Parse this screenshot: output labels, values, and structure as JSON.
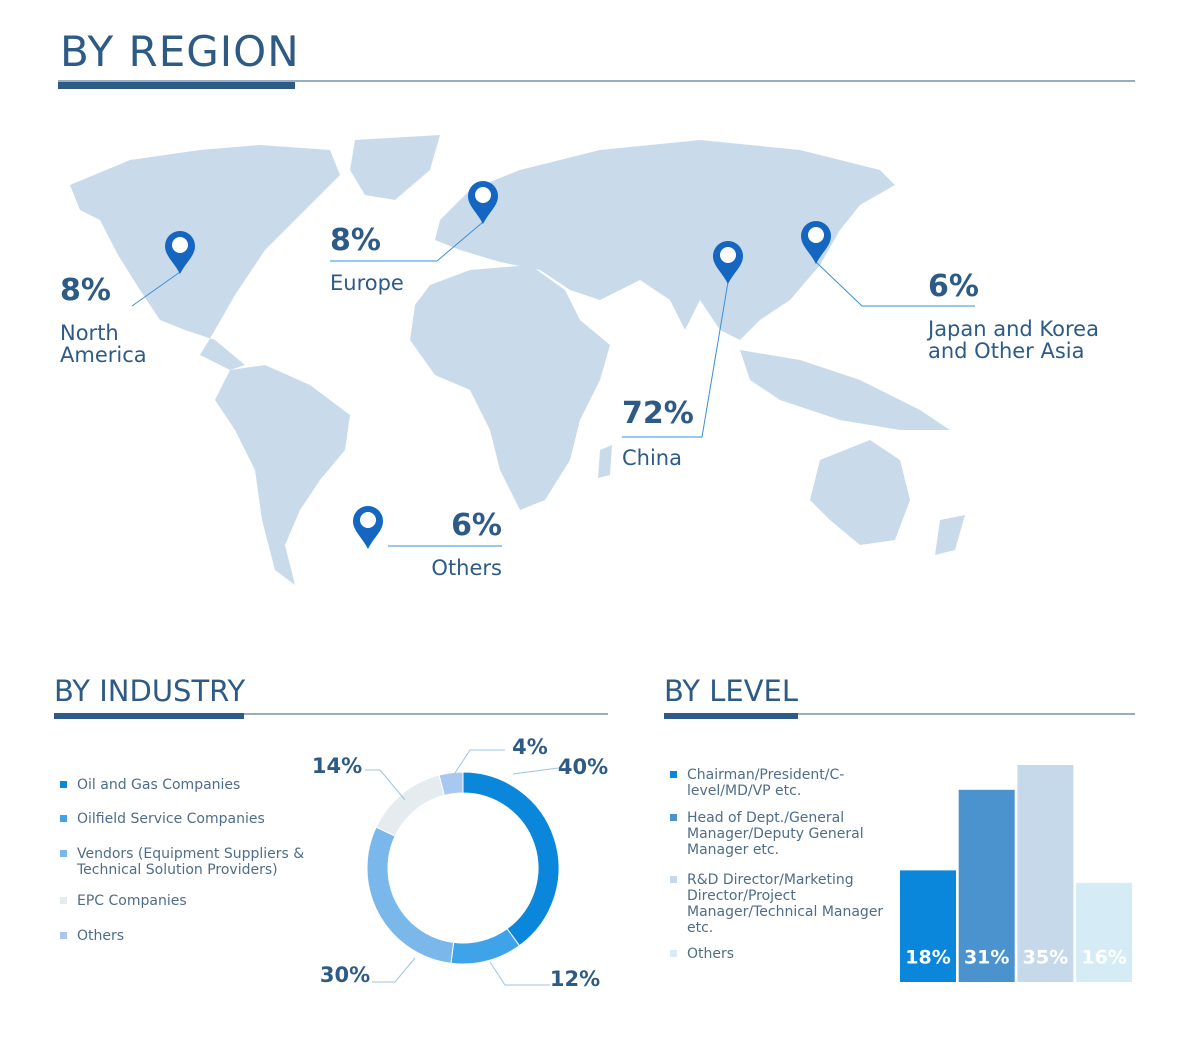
{
  "region": {
    "title": "BY REGION",
    "items": [
      {
        "value": "8%",
        "label": "North America"
      },
      {
        "value": "8%",
        "label": "Europe"
      },
      {
        "value": "72%",
        "label": "China"
      },
      {
        "value": "6%",
        "label": "Japan and Korea and Other Asia"
      },
      {
        "value": "6%",
        "label": "Others"
      }
    ]
  },
  "chart_data": [
    {
      "type": "donut",
      "title": "BY INDUSTRY",
      "categories": [
        "Oil and Gas Companies",
        "Oilfield Service Companies",
        "Vendors (Equipment Suppliers & Technical Solution Providers)",
        "EPC Companies",
        "Others"
      ],
      "values": [
        40,
        12,
        30,
        14,
        4
      ],
      "value_labels": [
        "40%",
        "12%",
        "30%",
        "14%",
        "4%"
      ],
      "colors": [
        "#0a86db",
        "#3ea3e8",
        "#7ab8ec",
        "#e4ecf0",
        "#a8c8f0"
      ]
    },
    {
      "type": "bar",
      "title": "BY LEVEL",
      "categories": [
        "Chairman/President/C-level/MD/VP etc.",
        "Head of Dept./General Manager/Deputy General Manager etc.",
        "R&D Director/Marketing Director/Project Manager/Technical Manager etc.",
        "Others"
      ],
      "values": [
        18,
        31,
        35,
        16
      ],
      "value_labels": [
        "18%",
        "31%",
        "35%",
        "16%"
      ],
      "colors": [
        "#0a86db",
        "#4a93cf",
        "#c6d9ea",
        "#d5ecf6"
      ]
    }
  ]
}
